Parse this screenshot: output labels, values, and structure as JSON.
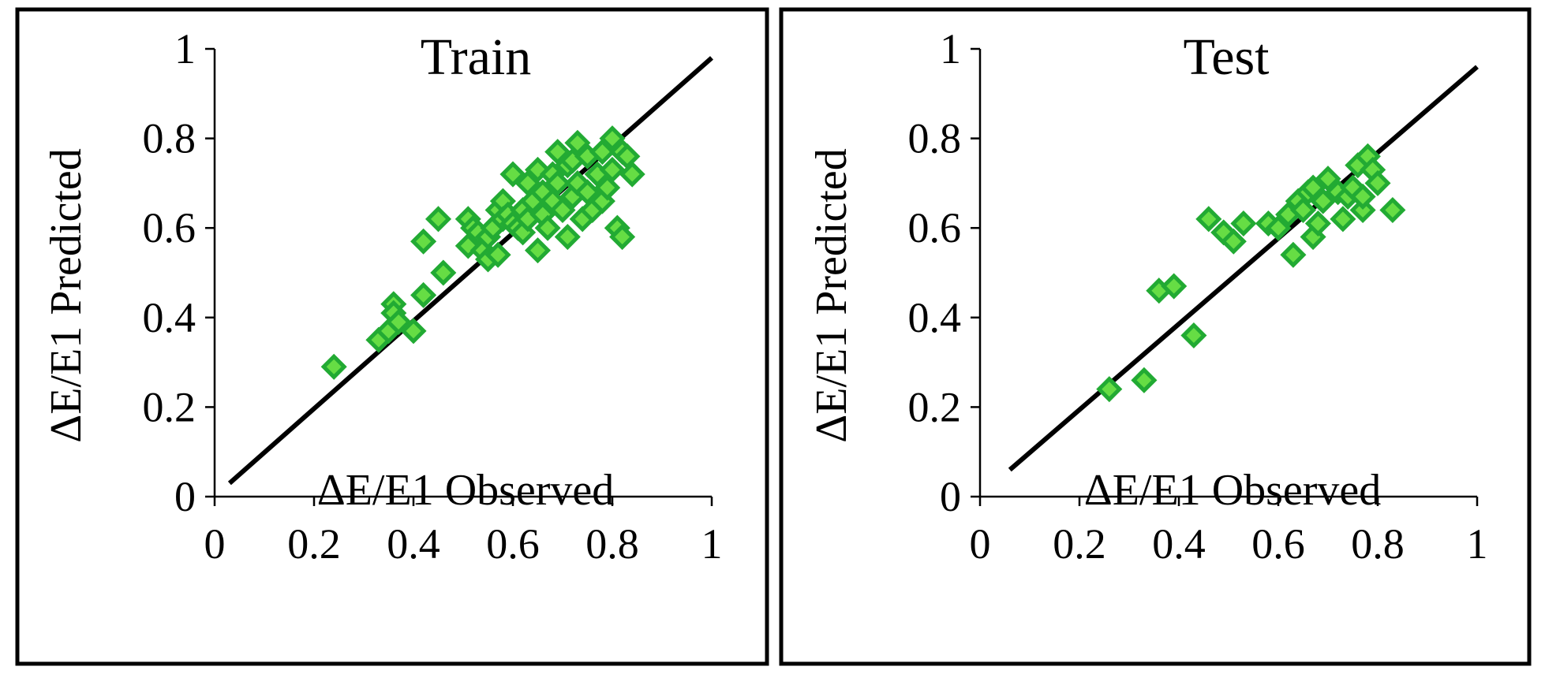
{
  "colors": {
    "marker_fill": "#66dd44",
    "marker_stroke": "#22aa33",
    "line": "#000000"
  },
  "chart_data": [
    {
      "type": "scatter",
      "title": "Train",
      "xlabel": "ΔE/E1  Observed",
      "ylabel": "ΔE/E1  Predicted",
      "xlim": [
        0,
        1
      ],
      "ylim": [
        0,
        1
      ],
      "xticks": [
        "0",
        "0.2",
        "0.4",
        "0.6",
        "0.8",
        "1"
      ],
      "yticks": [
        "0",
        "0.2",
        "0.4",
        "0.6",
        "0.8",
        "1"
      ],
      "grid": false,
      "fit_line": {
        "x": [
          0.03,
          1.0
        ],
        "y": [
          0.03,
          0.98
        ]
      },
      "points": [
        [
          0.24,
          0.29
        ],
        [
          0.33,
          0.35
        ],
        [
          0.35,
          0.37
        ],
        [
          0.36,
          0.43
        ],
        [
          0.36,
          0.41
        ],
        [
          0.37,
          0.39
        ],
        [
          0.4,
          0.37
        ],
        [
          0.42,
          0.57
        ],
        [
          0.42,
          0.45
        ],
        [
          0.45,
          0.62
        ],
        [
          0.46,
          0.5
        ],
        [
          0.51,
          0.56
        ],
        [
          0.51,
          0.62
        ],
        [
          0.52,
          0.6
        ],
        [
          0.53,
          0.59
        ],
        [
          0.54,
          0.55
        ],
        [
          0.55,
          0.58
        ],
        [
          0.55,
          0.53
        ],
        [
          0.56,
          0.6
        ],
        [
          0.57,
          0.64
        ],
        [
          0.57,
          0.54
        ],
        [
          0.58,
          0.66
        ],
        [
          0.58,
          0.62
        ],
        [
          0.59,
          0.63
        ],
        [
          0.6,
          0.72
        ],
        [
          0.6,
          0.61
        ],
        [
          0.61,
          0.6
        ],
        [
          0.62,
          0.64
        ],
        [
          0.62,
          0.59
        ],
        [
          0.63,
          0.7
        ],
        [
          0.63,
          0.62
        ],
        [
          0.64,
          0.66
        ],
        [
          0.65,
          0.73
        ],
        [
          0.65,
          0.55
        ],
        [
          0.66,
          0.68
        ],
        [
          0.66,
          0.63
        ],
        [
          0.67,
          0.6
        ],
        [
          0.68,
          0.72
        ],
        [
          0.68,
          0.66
        ],
        [
          0.69,
          0.77
        ],
        [
          0.69,
          0.7
        ],
        [
          0.7,
          0.64
        ],
        [
          0.71,
          0.74
        ],
        [
          0.71,
          0.58
        ],
        [
          0.72,
          0.67
        ],
        [
          0.72,
          0.75
        ],
        [
          0.73,
          0.79
        ],
        [
          0.73,
          0.7
        ],
        [
          0.74,
          0.62
        ],
        [
          0.75,
          0.76
        ],
        [
          0.75,
          0.68
        ],
        [
          0.76,
          0.64
        ],
        [
          0.77,
          0.72
        ],
        [
          0.78,
          0.77
        ],
        [
          0.78,
          0.66
        ],
        [
          0.79,
          0.69
        ],
        [
          0.8,
          0.8
        ],
        [
          0.8,
          0.73
        ],
        [
          0.81,
          0.6
        ],
        [
          0.82,
          0.77
        ],
        [
          0.82,
          0.58
        ],
        [
          0.83,
          0.76
        ],
        [
          0.84,
          0.72
        ]
      ]
    },
    {
      "type": "scatter",
      "title": "Test",
      "xlabel": "ΔE/E1  Observed",
      "ylabel": "ΔE/E1  Predicted",
      "xlim": [
        0,
        1
      ],
      "ylim": [
        0,
        1
      ],
      "xticks": [
        "0",
        "0.2",
        "0.4",
        "0.6",
        "0.8",
        "1"
      ],
      "yticks": [
        "0",
        "0.2",
        "0.4",
        "0.6",
        "0.8",
        "1"
      ],
      "grid": false,
      "fit_line": {
        "x": [
          0.06,
          1.0
        ],
        "y": [
          0.06,
          0.96
        ]
      },
      "points": [
        [
          0.26,
          0.24
        ],
        [
          0.33,
          0.26
        ],
        [
          0.36,
          0.46
        ],
        [
          0.39,
          0.47
        ],
        [
          0.43,
          0.36
        ],
        [
          0.46,
          0.62
        ],
        [
          0.49,
          0.59
        ],
        [
          0.51,
          0.57
        ],
        [
          0.53,
          0.61
        ],
        [
          0.58,
          0.61
        ],
        [
          0.6,
          0.6
        ],
        [
          0.62,
          0.63
        ],
        [
          0.63,
          0.54
        ],
        [
          0.64,
          0.66
        ],
        [
          0.65,
          0.64
        ],
        [
          0.66,
          0.68
        ],
        [
          0.67,
          0.58
        ],
        [
          0.67,
          0.69
        ],
        [
          0.68,
          0.61
        ],
        [
          0.69,
          0.66
        ],
        [
          0.7,
          0.71
        ],
        [
          0.72,
          0.68
        ],
        [
          0.73,
          0.62
        ],
        [
          0.74,
          0.67
        ],
        [
          0.75,
          0.69
        ],
        [
          0.76,
          0.74
        ],
        [
          0.77,
          0.64
        ],
        [
          0.77,
          0.67
        ],
        [
          0.78,
          0.76
        ],
        [
          0.79,
          0.73
        ],
        [
          0.8,
          0.7
        ],
        [
          0.83,
          0.64
        ]
      ]
    }
  ]
}
